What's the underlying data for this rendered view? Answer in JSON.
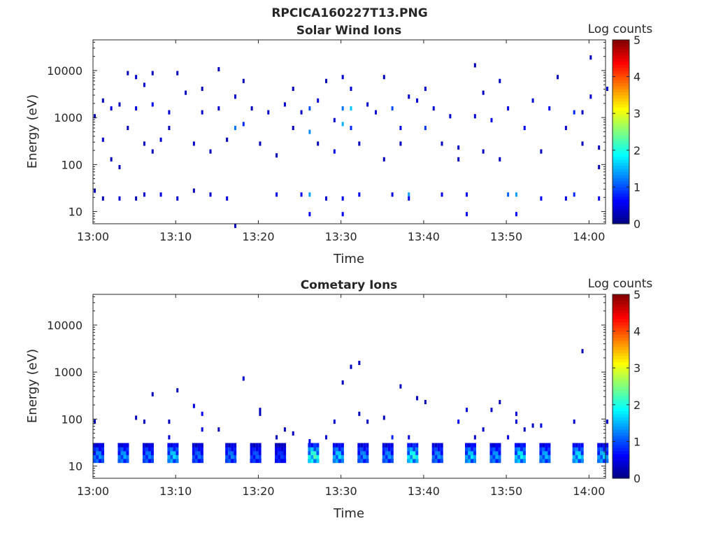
{
  "figure": {
    "title": "RPCICA160227T13.PNG"
  },
  "chart_data": [
    {
      "type": "heatmap",
      "title": "Solar Wind Ions",
      "xlabel": "Time",
      "ylabel": "Energy (eV)",
      "x_ticks": [
        "13:00",
        "13:10",
        "13:20",
        "13:30",
        "13:40",
        "13:50",
        "14:00"
      ],
      "xlim": [
        "13:00",
        "14:02"
      ],
      "y_scale": "log",
      "y_ticks": [
        "10",
        "100",
        "1000",
        "10000"
      ],
      "ylim": [
        5.5,
        45000
      ],
      "colorbar": {
        "label": "Log counts",
        "ticks": [
          "0",
          "1",
          "2",
          "3",
          "4",
          "5"
        ],
        "range": [
          0,
          5
        ],
        "colormap": "jet"
      },
      "cells": [
        [
          "13:00",
          30,
          0.3
        ],
        [
          "13:00",
          1050,
          0.3
        ],
        [
          "13:01",
          18,
          0.3
        ],
        [
          "13:01",
          2300,
          0.3
        ],
        [
          "13:01",
          320,
          0.4
        ],
        [
          "13:02",
          130,
          0.3
        ],
        [
          "13:02",
          1700,
          0.5
        ],
        [
          "13:03",
          90,
          0.3
        ],
        [
          "13:03",
          18,
          0.4
        ],
        [
          "13:03",
          1900,
          0.3
        ],
        [
          "13:04",
          9500,
          0.3
        ],
        [
          "13:04",
          600,
          0.3
        ],
        [
          "13:05",
          1500,
          0.5
        ],
        [
          "13:05",
          7000,
          0.4
        ],
        [
          "13:05",
          18,
          0.3
        ],
        [
          "13:06",
          300,
          0.3
        ],
        [
          "13:06",
          5000,
          0.4
        ],
        [
          "13:06",
          22,
          0.4
        ],
        [
          "13:07",
          1800,
          0.6
        ],
        [
          "13:07",
          200,
          0.3
        ],
        [
          "13:07",
          9000,
          0.3
        ],
        [
          "13:08",
          350,
          0.4
        ],
        [
          "13:08",
          22,
          0.5
        ],
        [
          "13:09",
          1400,
          0.4
        ],
        [
          "13:09",
          600,
          0.3
        ],
        [
          "13:10",
          18,
          0.4
        ],
        [
          "13:10",
          8600,
          0.3
        ],
        [
          "13:11",
          3500,
          0.3
        ],
        [
          "13:12",
          260,
          0.4
        ],
        [
          "13:12",
          30,
          0.3
        ],
        [
          "13:13",
          1200,
          0.4
        ],
        [
          "13:13",
          4000,
          0.3
        ],
        [
          "13:14",
          200,
          0.3
        ],
        [
          "13:14",
          22,
          0.4
        ],
        [
          "13:15",
          1600,
          0.4
        ],
        [
          "13:15",
          11000,
          0.3
        ],
        [
          "13:16",
          18,
          0.5
        ],
        [
          "13:16",
          350,
          0.3
        ],
        [
          "13:17",
          600,
          1.2
        ],
        [
          "13:17",
          2900,
          0.4
        ],
        [
          "13:17",
          5,
          0.3
        ],
        [
          "13:18",
          800,
          0.8
        ],
        [
          "13:18",
          6000,
          0.3
        ],
        [
          "13:19",
          1500,
          0.3
        ],
        [
          "13:20",
          300,
          0.3
        ],
        [
          "13:21",
          1200,
          0.4
        ],
        [
          "13:22",
          22,
          0.5
        ],
        [
          "13:22",
          160,
          0.3
        ],
        [
          "13:23",
          1900,
          0.4
        ],
        [
          "13:24",
          4000,
          0.3
        ],
        [
          "13:24",
          600,
          0.3
        ],
        [
          "13:25",
          1300,
          0.4
        ],
        [
          "13:25",
          22,
          0.6
        ],
        [
          "13:26",
          550,
          1.3
        ],
        [
          "13:26",
          1700,
          1.0
        ],
        [
          "13:26",
          22,
          1.4
        ],
        [
          "13:26",
          9,
          0.6
        ],
        [
          "13:27",
          2500,
          0.4
        ],
        [
          "13:27",
          300,
          0.3
        ],
        [
          "13:28",
          18,
          0.4
        ],
        [
          "13:28",
          6000,
          0.3
        ],
        [
          "13:29",
          900,
          0.4
        ],
        [
          "13:29",
          200,
          0.5
        ],
        [
          "13:30",
          1500,
          1.2
        ],
        [
          "13:30",
          700,
          1.5
        ],
        [
          "13:30",
          8000,
          0.4
        ],
        [
          "13:30",
          18,
          0.5
        ],
        [
          "13:30",
          9,
          0.6
        ],
        [
          "13:31",
          1500,
          1.6
        ],
        [
          "13:31",
          4000,
          0.4
        ],
        [
          "13:31",
          600,
          0.8
        ],
        [
          "13:32",
          22,
          0.6
        ],
        [
          "13:32",
          300,
          0.3
        ],
        [
          "13:33",
          2000,
          0.4
        ],
        [
          "13:34",
          1200,
          0.4
        ],
        [
          "13:35",
          130,
          0.3
        ],
        [
          "13:35",
          7500,
          0.3
        ],
        [
          "13:36",
          1500,
          1.0
        ],
        [
          "13:36",
          22,
          0.5
        ],
        [
          "13:37",
          650,
          0.5
        ],
        [
          "13:37",
          300,
          0.3
        ],
        [
          "13:38",
          22,
          1.4
        ],
        [
          "13:38",
          18,
          0.6
        ],
        [
          "13:38",
          3000,
          0.4
        ],
        [
          "13:39",
          2200,
          0.4
        ],
        [
          "13:40",
          4000,
          0.4
        ],
        [
          "13:40",
          600,
          0.9
        ],
        [
          "13:41",
          1500,
          0.4
        ],
        [
          "13:42",
          22,
          0.5
        ],
        [
          "13:42",
          300,
          0.3
        ],
        [
          "13:43",
          1100,
          0.4
        ],
        [
          "13:44",
          250,
          0.4
        ],
        [
          "13:44",
          140,
          0.3
        ],
        [
          "13:45",
          22,
          0.6
        ],
        [
          "13:45",
          9,
          0.6
        ],
        [
          "13:46",
          1100,
          0.4
        ],
        [
          "13:46",
          13000,
          0.3
        ],
        [
          "13:47",
          200,
          0.3
        ],
        [
          "13:47",
          3500,
          0.3
        ],
        [
          "13:48",
          900,
          0.5
        ],
        [
          "13:49",
          6500,
          0.3
        ],
        [
          "13:49",
          130,
          0.3
        ],
        [
          "13:50",
          22,
          1.1
        ],
        [
          "13:50",
          1500,
          0.5
        ],
        [
          "13:51",
          25,
          1.4
        ],
        [
          "13:51",
          9,
          0.6
        ],
        [
          "13:52",
          600,
          0.6
        ],
        [
          "13:53",
          2200,
          0.4
        ],
        [
          "13:54",
          200,
          0.3
        ],
        [
          "13:54",
          18,
          0.6
        ],
        [
          "13:55",
          1500,
          0.6
        ],
        [
          "13:56",
          8000,
          0.3
        ],
        [
          "13:57",
          600,
          0.4
        ],
        [
          "13:57",
          18,
          0.5
        ],
        [
          "13:58",
          22,
          0.8
        ],
        [
          "13:58",
          1400,
          0.8
        ],
        [
          "13:59",
          1200,
          0.4
        ],
        [
          "13:59",
          300,
          0.3
        ],
        [
          "14:00",
          20000,
          0.3
        ],
        [
          "14:00",
          3000,
          0.4
        ],
        [
          "14:01",
          90,
          0.3
        ],
        [
          "14:01",
          18,
          0.6
        ],
        [
          "14:01",
          250,
          0.3
        ],
        [
          "14:02",
          4500,
          0.4
        ]
      ]
    },
    {
      "type": "heatmap",
      "title": "Cometary Ions",
      "xlabel": "Time",
      "ylabel": "Energy (eV)",
      "x_ticks": [
        "13:00",
        "13:10",
        "13:20",
        "13:30",
        "13:40",
        "13:50",
        "14:00"
      ],
      "xlim": [
        "13:00",
        "14:02"
      ],
      "y_scale": "log",
      "y_ticks": [
        "10",
        "100",
        "1000",
        "10000"
      ],
      "ylim": [
        5.5,
        45000
      ],
      "colorbar": {
        "label": "Log counts",
        "ticks": [
          "0",
          "1",
          "2",
          "3",
          "4",
          "5"
        ],
        "range": [
          0,
          5
        ],
        "colormap": "jet"
      },
      "bursts": [
        [
          "13:00",
          1.5
        ],
        [
          "13:03",
          1.6
        ],
        [
          "13:06",
          1.4
        ],
        [
          "13:09",
          1.9
        ],
        [
          "13:12",
          1.3
        ],
        [
          "13:16",
          1.4
        ],
        [
          "13:19",
          1.2
        ],
        [
          "13:22",
          1.0
        ],
        [
          "13:26",
          2.5
        ],
        [
          "13:29",
          1.9
        ],
        [
          "13:32",
          1.5
        ],
        [
          "13:35",
          1.5
        ],
        [
          "13:38",
          2.3
        ],
        [
          "13:41",
          1.5
        ],
        [
          "13:45",
          1.9
        ],
        [
          "13:48",
          1.6
        ],
        [
          "13:51",
          2.1
        ],
        [
          "13:54",
          1.7
        ],
        [
          "13:58",
          2.0
        ],
        [
          "14:01",
          1.8
        ]
      ],
      "cells": [
        [
          "13:00",
          90,
          0.4
        ],
        [
          "13:05",
          100,
          0.3
        ],
        [
          "13:06",
          90,
          0.3
        ],
        [
          "13:07",
          350,
          0.3
        ],
        [
          "13:09",
          40,
          0.4
        ],
        [
          "13:09",
          90,
          0.3
        ],
        [
          "13:10",
          420,
          0.3
        ],
        [
          "13:12",
          180,
          0.5
        ],
        [
          "13:13",
          130,
          0.6
        ],
        [
          "13:13",
          60,
          0.5
        ],
        [
          "13:15",
          60,
          0.3
        ],
        [
          "13:18",
          700,
          0.4
        ],
        [
          "13:20",
          120,
          0.3
        ],
        [
          "13:20",
          150,
          0.3
        ],
        [
          "13:22",
          40,
          0.3
        ],
        [
          "13:23",
          60,
          0.3
        ],
        [
          "13:24",
          50,
          0.3
        ],
        [
          "13:26",
          35,
          0.6
        ],
        [
          "13:28",
          40,
          0.4
        ],
        [
          "13:29",
          90,
          0.4
        ],
        [
          "13:30",
          650,
          0.3
        ],
        [
          "13:31",
          1400,
          0.3
        ],
        [
          "13:32",
          1500,
          0.3
        ],
        [
          "13:32",
          120,
          0.3
        ],
        [
          "13:33",
          90,
          0.3
        ],
        [
          "13:35",
          100,
          0.3
        ],
        [
          "13:36",
          40,
          0.8
        ],
        [
          "13:37",
          500,
          0.3
        ],
        [
          "13:38",
          40,
          0.5
        ],
        [
          "13:39",
          300,
          0.3
        ],
        [
          "13:40",
          250,
          0.3
        ],
        [
          "13:44",
          90,
          0.6
        ],
        [
          "13:45",
          150,
          0.5
        ],
        [
          "13:46",
          40,
          0.4
        ],
        [
          "13:47",
          60,
          0.4
        ],
        [
          "13:48",
          150,
          0.4
        ],
        [
          "13:49",
          230,
          0.3
        ],
        [
          "13:50",
          40,
          0.5
        ],
        [
          "13:51",
          90,
          0.4
        ],
        [
          "13:51",
          140,
          0.4
        ],
        [
          "13:52",
          60,
          0.3
        ],
        [
          "13:53",
          80,
          0.3
        ],
        [
          "13:54",
          70,
          0.5
        ],
        [
          "13:58",
          90,
          0.4
        ],
        [
          "13:59",
          3000,
          0.3
        ],
        [
          "14:02",
          90,
          0.4
        ]
      ]
    }
  ]
}
